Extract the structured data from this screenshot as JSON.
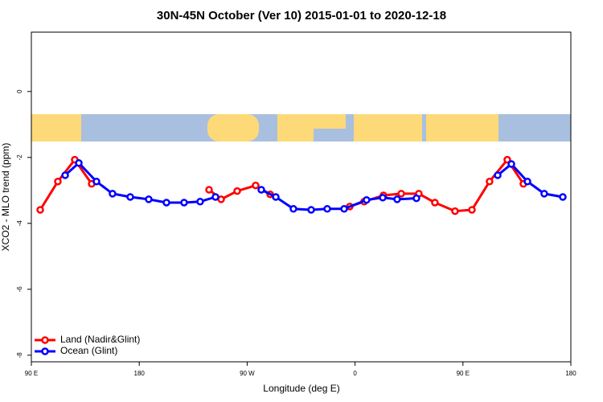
{
  "chart_data": {
    "type": "line",
    "title": "30N-45N October (Ver 10)   2015-01-01 to 2020-12-18",
    "x_label": "Longitude (deg E)",
    "y_label": "XCO2 - MLO trend (ppm)",
    "xlim": [
      90,
      540
    ],
    "xticks": [
      {
        "value": 90,
        "label": "90 E"
      },
      180,
      {
        "value": 270,
        "label": "90 W"
      },
      {
        "value": 360,
        "label": "0"
      },
      {
        "value": 450,
        "label": "90 E"
      },
      {
        "value": 540,
        "label": "180"
      }
    ],
    "ylim": [
      -8.2,
      1.8
    ],
    "yticks": [
      0,
      -2,
      -4,
      -6,
      -8
    ],
    "legend": "bottom-left",
    "series": [
      {
        "name": "Land (Nadir&Glint)",
        "color": "#ff0000",
        "x": [
          97.4,
          112.1,
          126.2,
          140.3,
          null,
          238.2,
          248.3,
          261.7,
          277.1,
          289.2,
          null,
          355.6,
          367.6,
          383.7,
          398.5,
          413.2,
          426.6,
          443.4,
          457.5,
          472.2,
          487.0,
          500.4
        ],
        "values": [
          -3.59,
          -2.73,
          -2.07,
          -2.8,
          null,
          -2.98,
          -3.27,
          -3.02,
          -2.85,
          -3.12,
          null,
          -3.49,
          -3.34,
          -3.15,
          -3.1,
          -3.1,
          -3.37,
          -3.63,
          -3.59,
          -2.73,
          -2.07,
          -2.8
        ]
      },
      {
        "name": "Ocean (Glint)",
        "color": "#0000ff",
        "x": [
          118.2,
          129.6,
          144.3,
          157.7,
          172.5,
          187.9,
          202.7,
          217.4,
          230.8,
          243.6,
          null,
          281.8,
          293.9,
          308.6,
          323.4,
          336.8,
          350.9,
          369.6,
          383.1,
          395.1,
          411.2,
          null,
          479.0,
          490.4,
          503.8,
          517.8,
          533.3
        ],
        "values": [
          -2.54,
          -2.17,
          -2.73,
          -3.1,
          -3.2,
          -3.27,
          -3.37,
          -3.37,
          -3.34,
          -3.2,
          null,
          -2.98,
          -3.2,
          -3.56,
          -3.59,
          -3.56,
          -3.56,
          -3.29,
          -3.22,
          -3.27,
          -3.24,
          null,
          -2.54,
          -2.2,
          -2.73,
          -3.1,
          -3.2
        ]
      }
    ]
  }
}
